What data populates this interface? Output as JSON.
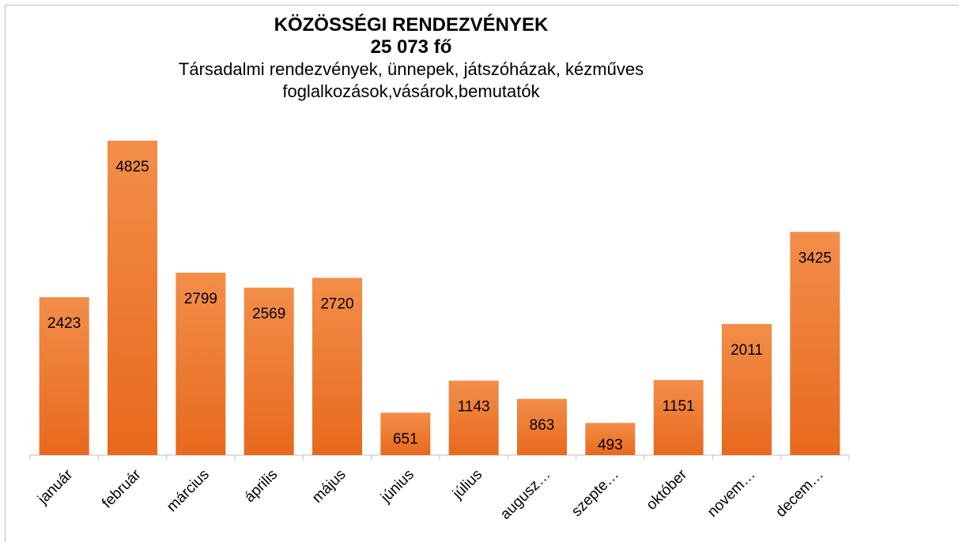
{
  "chart_data": {
    "type": "bar",
    "title": "KÖZÖSSÉGI RENDEZVÉNYEK",
    "subtitle": "25 073 fő",
    "description": "Társadalmi rendezvények, ünnepek, játszóházak,  kézműves foglalkozások,vásárok,bemutatók",
    "categories": [
      "január",
      "február",
      "március",
      "április",
      "május",
      "június",
      "július",
      "augusz…",
      "szepte…",
      "október",
      "novem…",
      "decem…"
    ],
    "values": [
      2423,
      4825,
      2799,
      2569,
      2720,
      651,
      1143,
      863,
      493,
      1151,
      2011,
      3425
    ],
    "color": "#ee7a30"
  }
}
